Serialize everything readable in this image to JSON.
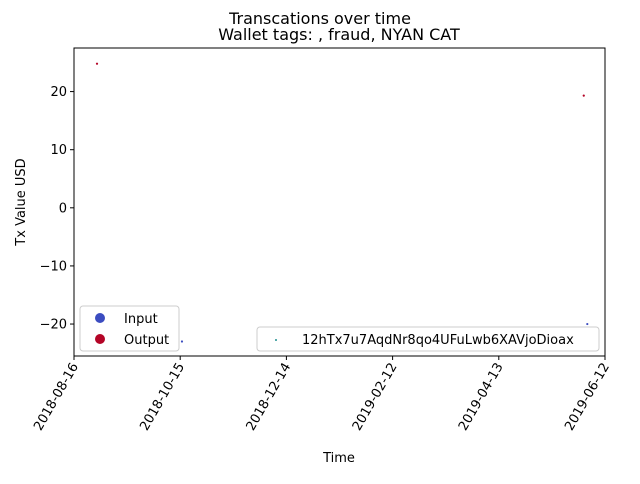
{
  "chart_data": {
    "type": "scatter",
    "suptitle": "Transcations over time",
    "title": "Wallet tags: , fraud, NYAN CAT",
    "xlabel": "Time",
    "ylabel": "Tx Value USD",
    "x_ticks": [
      "2018-08-16",
      "2018-10-15",
      "2018-12-14",
      "2019-02-12",
      "2019-04-13",
      "2019-06-12"
    ],
    "y_ticks": [
      -20,
      -10,
      0,
      10,
      20
    ],
    "xlim": [
      "2018-08-16",
      "2019-06-12"
    ],
    "ylim": [
      -25.5,
      27.5
    ],
    "grid": false,
    "points": [
      {
        "date": "2018-08-29",
        "value": 24.8,
        "series": "Output"
      },
      {
        "date": "2018-10-16",
        "value": -23.0,
        "series": "Input"
      },
      {
        "date": "2019-05-31",
        "value": 19.3,
        "series": "Output"
      },
      {
        "date": "2019-06-02",
        "value": -20.0,
        "series": "Input"
      }
    ],
    "series": [
      {
        "name": "Input",
        "color": "#3b4cc0"
      },
      {
        "name": "Output",
        "color": "#b40426"
      }
    ],
    "legend_series": {
      "placement": "lower-left",
      "entries": [
        "Input",
        "Output"
      ]
    },
    "legend_address": {
      "placement": "lower-right",
      "label": "12hTx7u7AqdNr8qo4UFuLwb6XAVjoDioax",
      "color": "#1f8f8f"
    }
  }
}
